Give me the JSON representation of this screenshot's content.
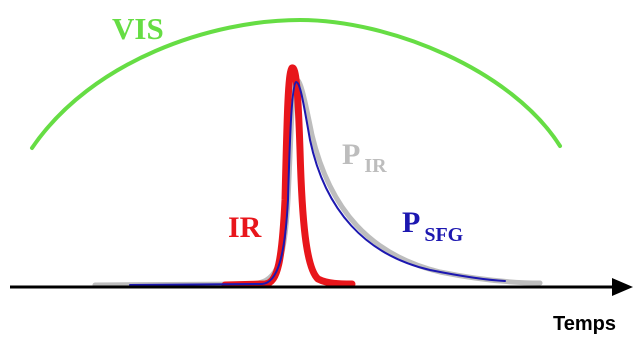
{
  "labels": {
    "vis": "VIS",
    "ir": "IR",
    "p_ir_main": "P",
    "p_ir_sub": "IR",
    "p_sfg_main": "P",
    "p_sfg_sub": "SFG",
    "axis": "Temps"
  },
  "colors": {
    "vis": "#66dd44",
    "ir": "#e8161b",
    "p_ir": "#bdbdbd",
    "p_sfg": "#1c17b0",
    "axis": "#000000"
  }
}
